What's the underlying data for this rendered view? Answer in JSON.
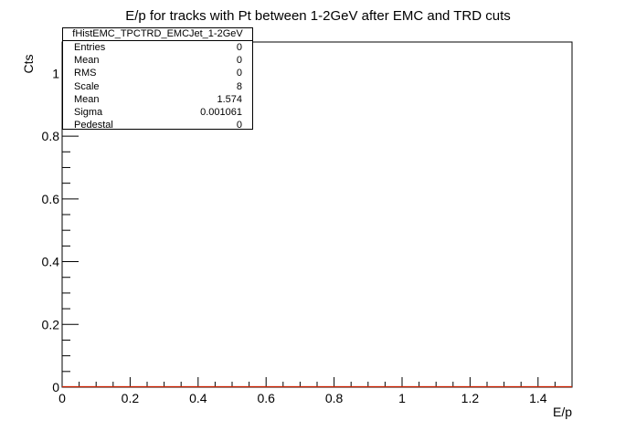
{
  "chart_data": {
    "type": "bar",
    "title": "E/p for tracks with Pt between 1-2GeV after EMC and TRD cuts",
    "xlabel": "E/p",
    "ylabel": "Cts",
    "xlim": [
      0,
      1.5
    ],
    "ylim": [
      0,
      1.1
    ],
    "x_ticks": [
      "0",
      "0.2",
      "0.4",
      "0.6",
      "0.8",
      "1",
      "1.2",
      "1.4"
    ],
    "y_ticks": [
      "0",
      "0.2",
      "0.4",
      "0.6",
      "0.8",
      "1"
    ],
    "series": [
      {
        "values": [
          0,
          0
        ],
        "x": [
          0,
          1.5
        ]
      }
    ],
    "grid": false,
    "colors": {
      "histogram": "#cc2200",
      "axis": "#000000"
    }
  },
  "stats": {
    "name": "fHistEMC_TPCTRD_EMCJet_1-2GeV",
    "rows": [
      {
        "label": "Entries",
        "value": "0"
      },
      {
        "label": "Mean",
        "value": "0"
      },
      {
        "label": "RMS",
        "value": "0"
      },
      {
        "label": "Scale",
        "value": "8"
      },
      {
        "label": "Mean",
        "value": "1.574"
      },
      {
        "label": "Sigma",
        "value": "0.001061"
      },
      {
        "label": "Pedestal",
        "value": "0"
      }
    ]
  }
}
